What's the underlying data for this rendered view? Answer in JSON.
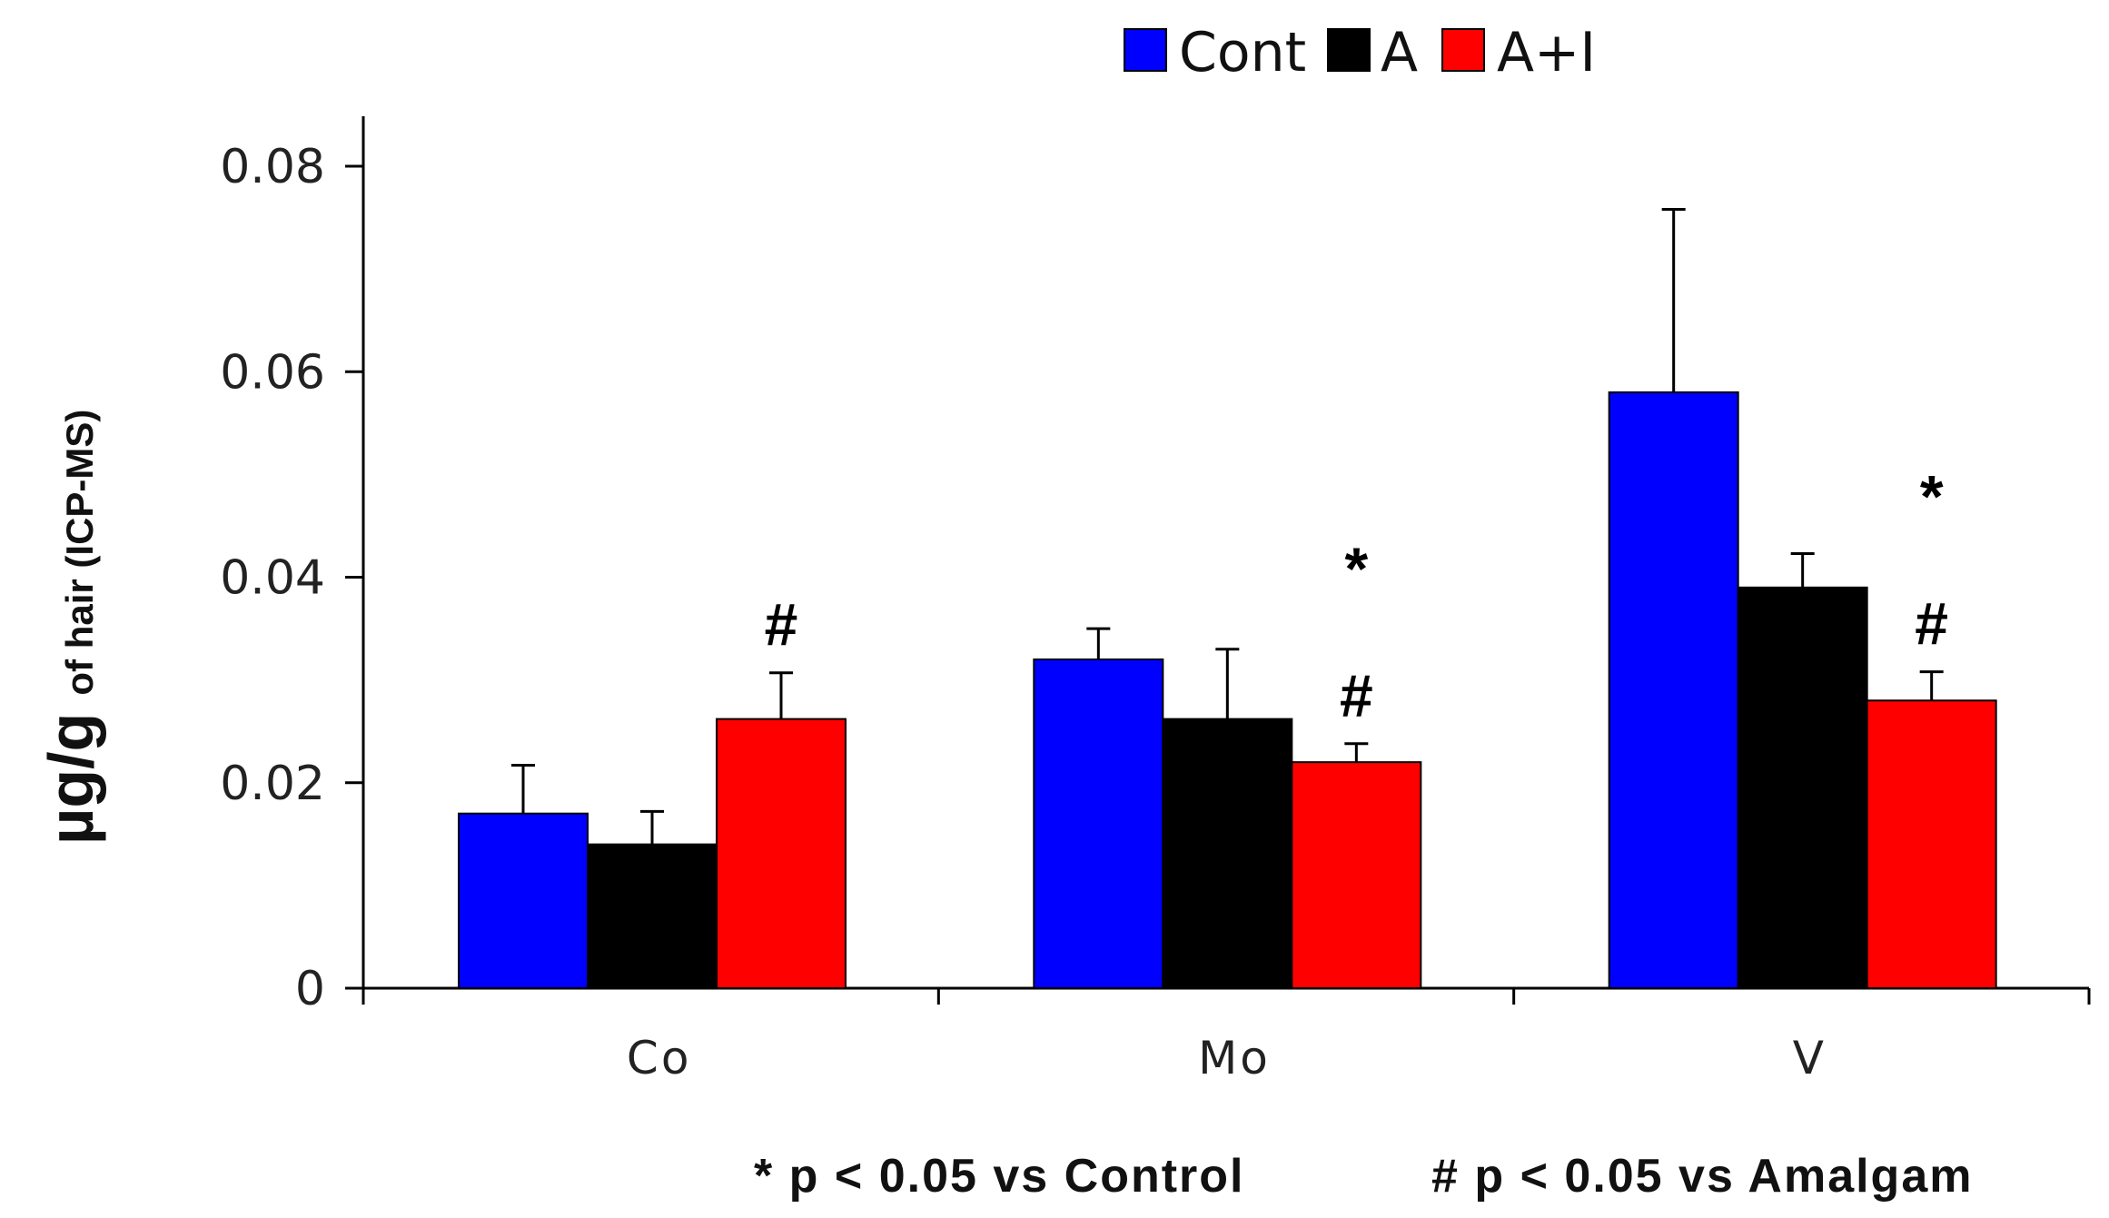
{
  "chart_data": {
    "type": "bar",
    "categories": [
      "Co",
      "Mo",
      "V"
    ],
    "series": [
      {
        "name": "Cont",
        "color": "#0000ff",
        "values": [
          0.017,
          0.032,
          0.058
        ],
        "errors": [
          0.0047,
          0.003,
          0.0178
        ]
      },
      {
        "name": "A",
        "color": "#000000",
        "values": [
          0.014,
          0.0262,
          0.039
        ],
        "errors": [
          0.0032,
          0.0068,
          0.0033
        ]
      },
      {
        "name": "A+I",
        "color": "#ff0000",
        "values": [
          0.0262,
          0.022,
          0.028
        ],
        "errors": [
          0.0045,
          0.0018,
          0.0028
        ]
      }
    ],
    "ylim": [
      0,
      0.08
    ],
    "yticks": [
      "0",
      "0.02",
      "0.04",
      "0.06",
      "0.08"
    ],
    "ytick_values": [
      0,
      0.02,
      0.04,
      0.06,
      0.08
    ],
    "ylabel_main": "µg/g",
    "ylabel_sub": "of hair (ICP-MS)",
    "xlabel": "",
    "legend_position": "top",
    "significance": [
      {
        "category": "Co",
        "series": "A+I",
        "marks": [
          "#"
        ]
      },
      {
        "category": "Mo",
        "series": "A+I",
        "marks": [
          "*",
          "#"
        ]
      },
      {
        "category": "V",
        "series": "A+I",
        "marks": [
          "*",
          "#"
        ]
      }
    ],
    "footnotes": [
      "* p < 0.05 vs Control",
      "# p < 0.05 vs Amalgam"
    ]
  }
}
